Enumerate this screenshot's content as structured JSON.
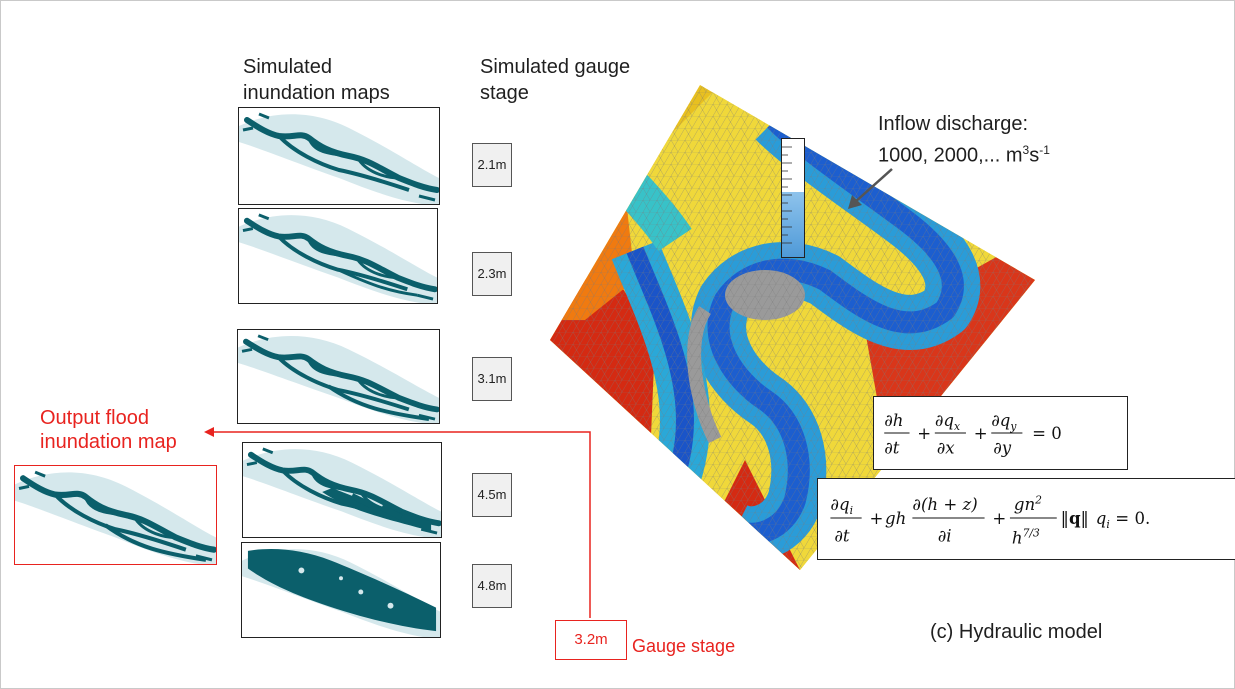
{
  "headers": {
    "maps_line1": "Simulated",
    "maps_line2": "inundation maps",
    "gauge_line1": "Simulated gauge",
    "gauge_line2": "stage"
  },
  "maps": [
    {
      "stage": "2.1m"
    },
    {
      "stage": "2.3m"
    },
    {
      "stage": "3.1m"
    },
    {
      "stage": "4.5m"
    },
    {
      "stage": "4.8m"
    }
  ],
  "output": {
    "line1": "Output flood",
    "line2": "inundation map"
  },
  "gauge": {
    "value": "3.2m",
    "label": "Gauge stage"
  },
  "inflow": {
    "line1": "Inflow discharge:",
    "line2": "1000, 2000,... m",
    "sup1": "3",
    "mid": "s",
    "sup2": "-1"
  },
  "caption": "(c) Hydraulic model",
  "colors": {
    "water": "#0b5f6b",
    "floodplain": "#d5e8ec",
    "red_annotation": "#e8231f"
  }
}
